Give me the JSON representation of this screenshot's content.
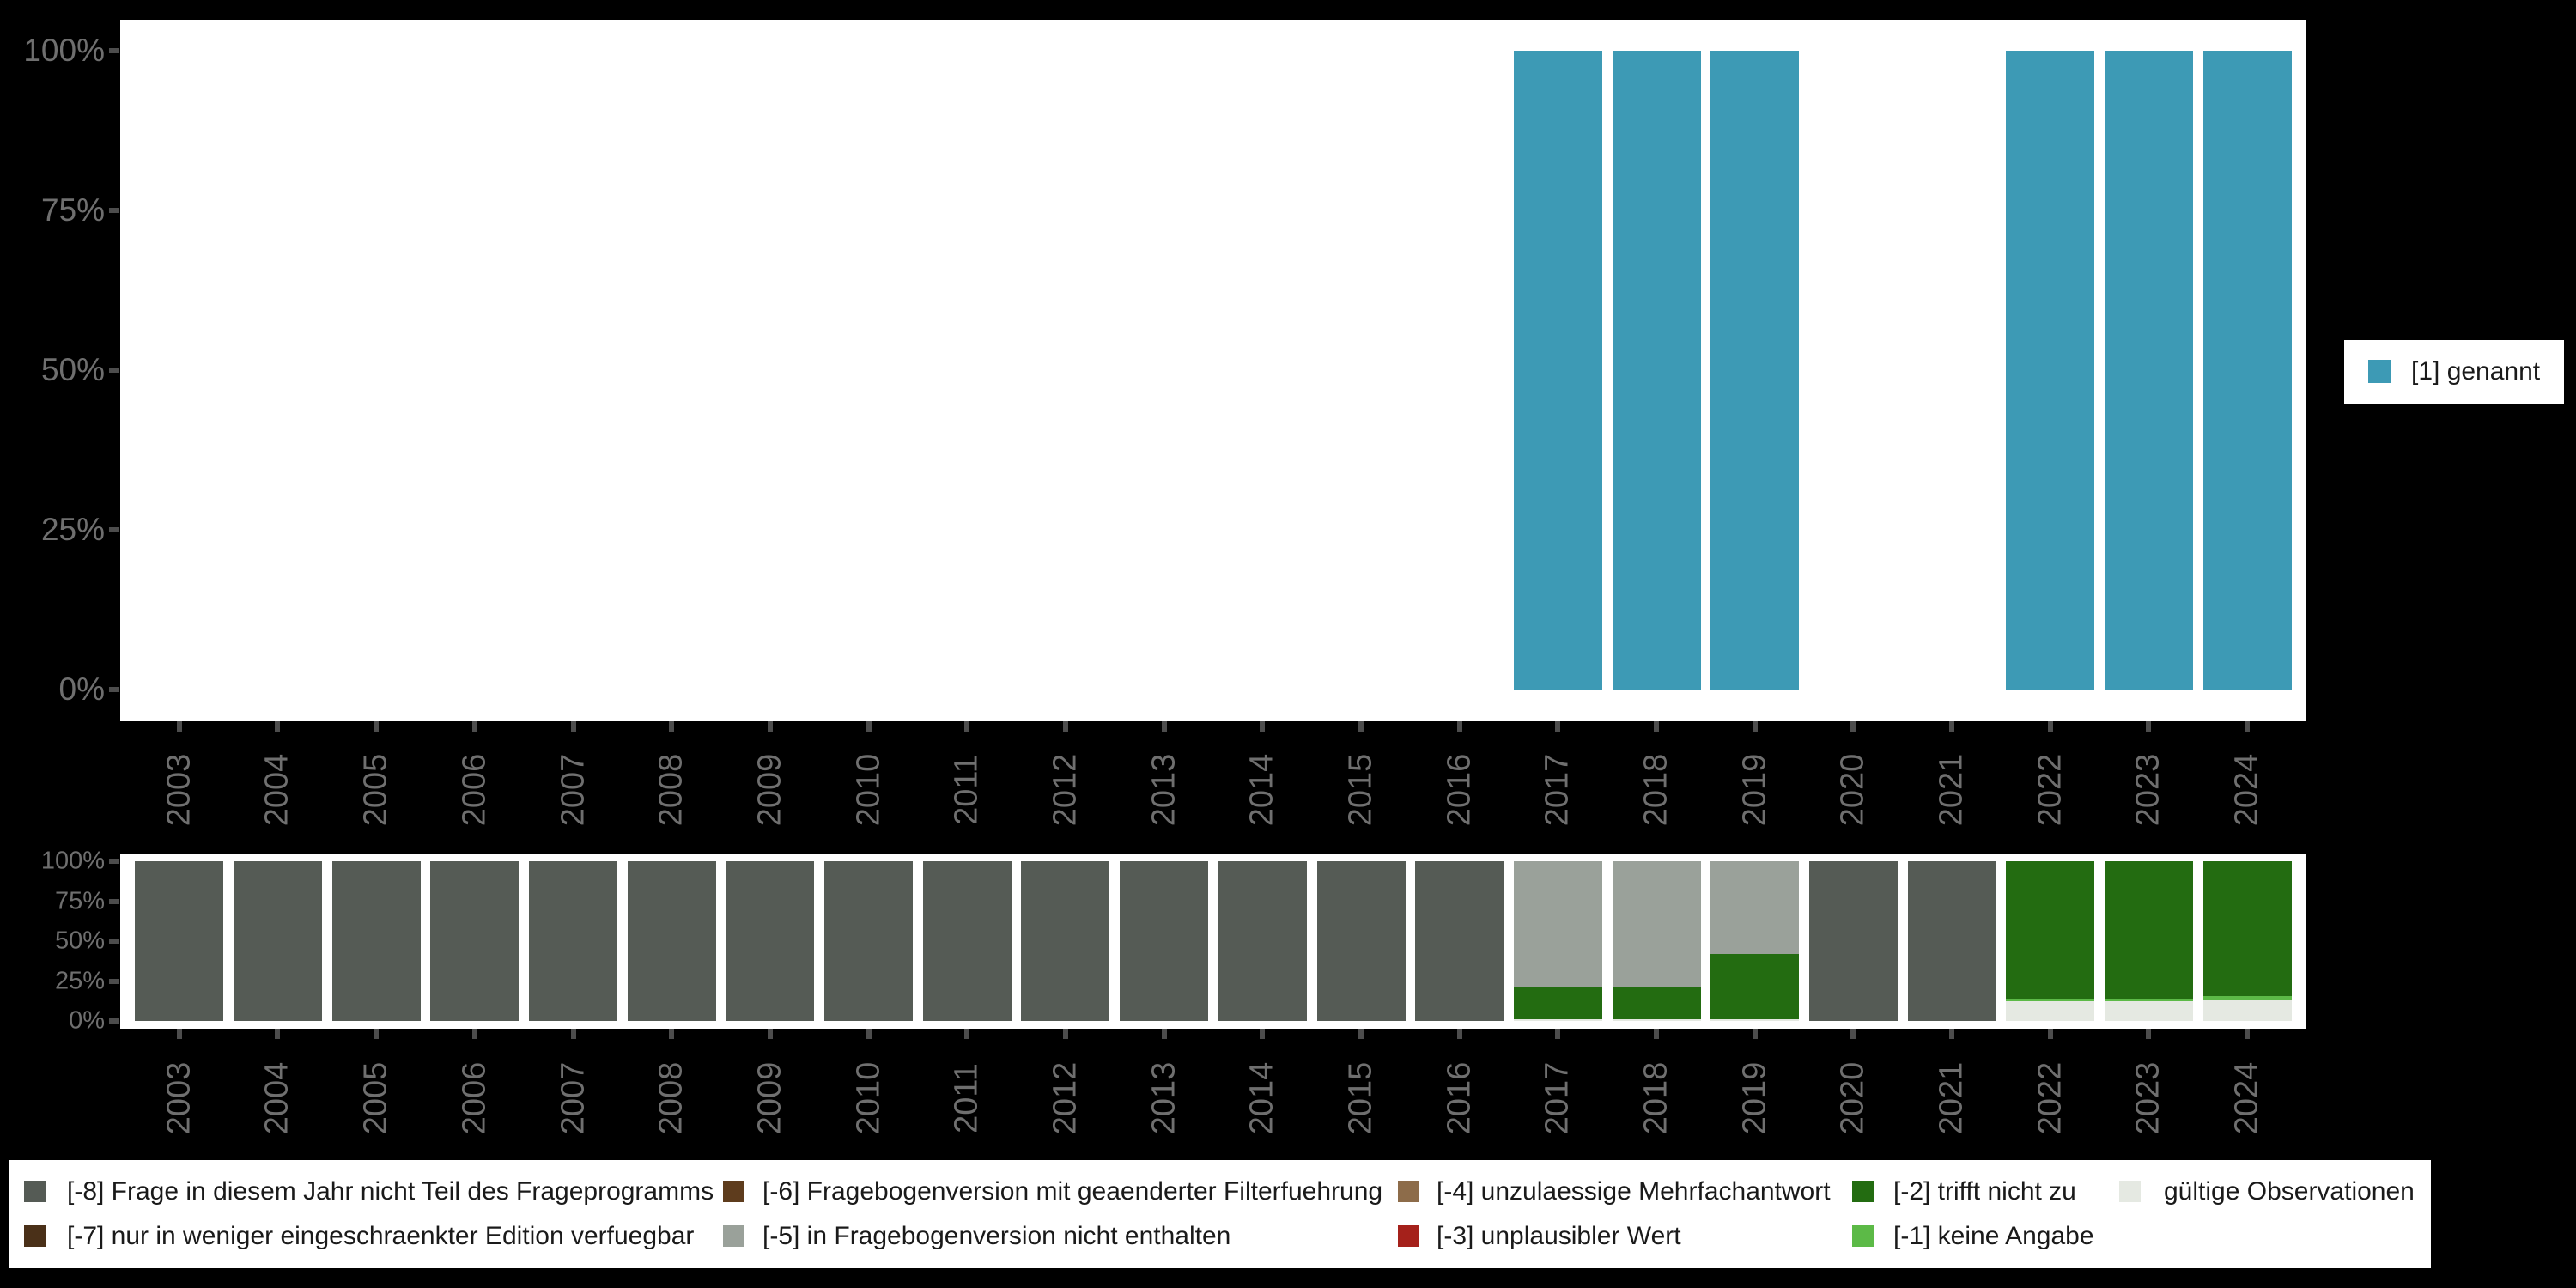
{
  "app": {
    "background": "#000000",
    "plot_background": "#ffffff",
    "axis_text_color": "#6f6f6f",
    "tick_color": "#4d4d4d",
    "legend_text_color": "#1a1a1a"
  },
  "chart_data": [
    {
      "id": "responses",
      "type": "bar",
      "stacked": false,
      "title": "",
      "xlabel": "",
      "ylabel": "",
      "ylim": [
        0,
        100
      ],
      "grid": false,
      "legend_position": "right",
      "y_ticks": [
        "0%",
        "25%",
        "50%",
        "75%",
        "100%"
      ],
      "categories": [
        "2003",
        "2004",
        "2005",
        "2006",
        "2007",
        "2008",
        "2009",
        "2010",
        "2011",
        "2012",
        "2013",
        "2014",
        "2015",
        "2016",
        "2017",
        "2018",
        "2019",
        "2020",
        "2021",
        "2022",
        "2023",
        "2024"
      ],
      "series": [
        {
          "name": "[1] genannt",
          "color": "#3d9ab5",
          "values": [
            0,
            0,
            0,
            0,
            0,
            0,
            0,
            0,
            0,
            0,
            0,
            0,
            0,
            0,
            100,
            100,
            100,
            0,
            0,
            100,
            100,
            100
          ]
        }
      ]
    },
    {
      "id": "missing-codes",
      "type": "bar",
      "stacked": true,
      "title": "",
      "xlabel": "",
      "ylabel": "",
      "ylim": [
        0,
        100
      ],
      "grid": false,
      "legend_position": "bottom",
      "y_ticks": [
        "0%",
        "25%",
        "50%",
        "75%",
        "100%"
      ],
      "categories": [
        "2003",
        "2004",
        "2005",
        "2006",
        "2007",
        "2008",
        "2009",
        "2010",
        "2011",
        "2012",
        "2013",
        "2014",
        "2015",
        "2016",
        "2017",
        "2018",
        "2019",
        "2020",
        "2021",
        "2022",
        "2023",
        "2024"
      ],
      "series": [
        {
          "name": "[-8] Frage in diesem Jahr nicht Teil des Frageprogramms",
          "color": "#555b55",
          "values": [
            100,
            100,
            100,
            100,
            100,
            100,
            100,
            100,
            100,
            100,
            100,
            100,
            100,
            100,
            0,
            0,
            0,
            100,
            100,
            0,
            0,
            0
          ]
        },
        {
          "name": "[-7] nur in weniger eingeschraenkter Edition verfuegbar",
          "color": "#4a3018",
          "values": [
            0,
            0,
            0,
            0,
            0,
            0,
            0,
            0,
            0,
            0,
            0,
            0,
            0,
            0,
            0,
            0,
            0,
            0,
            0,
            0,
            0,
            0
          ]
        },
        {
          "name": "[-6] Fragebogenversion mit geaenderter Filterfuehrung",
          "color": "#5e3c1d",
          "values": [
            0,
            0,
            0,
            0,
            0,
            0,
            0,
            0,
            0,
            0,
            0,
            0,
            0,
            0,
            0,
            0,
            0,
            0,
            0,
            0,
            0,
            0
          ]
        },
        {
          "name": "[-5] in Fragebogenversion nicht enthalten",
          "color": "#9aa19a",
          "values": [
            0,
            0,
            0,
            0,
            0,
            0,
            0,
            0,
            0,
            0,
            0,
            0,
            0,
            0,
            78.5,
            79,
            58,
            0,
            0,
            0,
            0,
            0
          ]
        },
        {
          "name": "[-4] unzulaessige Mehrfachantwort",
          "color": "#8d6c4a",
          "values": [
            0,
            0,
            0,
            0,
            0,
            0,
            0,
            0,
            0,
            0,
            0,
            0,
            0,
            0,
            0,
            0,
            0,
            0,
            0,
            0,
            0,
            0
          ]
        },
        {
          "name": "[-3] unplausibler Wert",
          "color": "#a5211b",
          "values": [
            0,
            0,
            0,
            0,
            0,
            0,
            0,
            0,
            0,
            0,
            0,
            0,
            0,
            0,
            0,
            0,
            0,
            0,
            0,
            0,
            0,
            0
          ]
        },
        {
          "name": "[-2] trifft nicht zu",
          "color": "#236c11",
          "values": [
            0,
            0,
            0,
            0,
            0,
            0,
            0,
            0,
            0,
            0,
            0,
            0,
            0,
            0,
            20.4,
            19.9,
            40.9,
            0,
            0,
            86,
            86,
            84.5
          ]
        },
        {
          "name": "[-1] keine Angabe",
          "color": "#5cba47",
          "values": [
            0,
            0,
            0,
            0,
            0,
            0,
            0,
            0,
            0,
            0,
            0,
            0,
            0,
            0,
            0,
            0,
            0,
            0,
            0,
            1.5,
            1.5,
            2.5
          ]
        },
        {
          "name": "gültige Observationen",
          "color": "#e5e9e2",
          "values": [
            0,
            0,
            0,
            0,
            0,
            0,
            0,
            0,
            0,
            0,
            0,
            0,
            0,
            0,
            1.1,
            1.1,
            1.1,
            0,
            0,
            12.5,
            12.5,
            13
          ]
        }
      ]
    }
  ],
  "legend_top": {
    "items": [
      {
        "label": "[1] genannt",
        "color": "#3d9ab5"
      }
    ]
  },
  "legend_bottom": {
    "items": [
      {
        "label": "[-8] Frage in diesem Jahr nicht Teil des Frageprogramms",
        "color": "#555b55"
      },
      {
        "label": "[-7] nur in weniger eingeschraenkter Edition verfuegbar",
        "color": "#4a3018"
      },
      {
        "label": "[-6] Fragebogenversion mit geaenderter Filterfuehrung",
        "color": "#5e3c1d"
      },
      {
        "label": "[-5] in Fragebogenversion nicht enthalten",
        "color": "#9aa19a"
      },
      {
        "label": "[-4] unzulaessige Mehrfachantwort",
        "color": "#8d6c4a"
      },
      {
        "label": "[-3] unplausibler Wert",
        "color": "#a5211b"
      },
      {
        "label": "[-2] trifft nicht zu",
        "color": "#236c11"
      },
      {
        "label": "[-1] keine Angabe",
        "color": "#5cba47"
      },
      {
        "label": "gültige Observationen",
        "color": "#e5e9e2"
      }
    ]
  }
}
